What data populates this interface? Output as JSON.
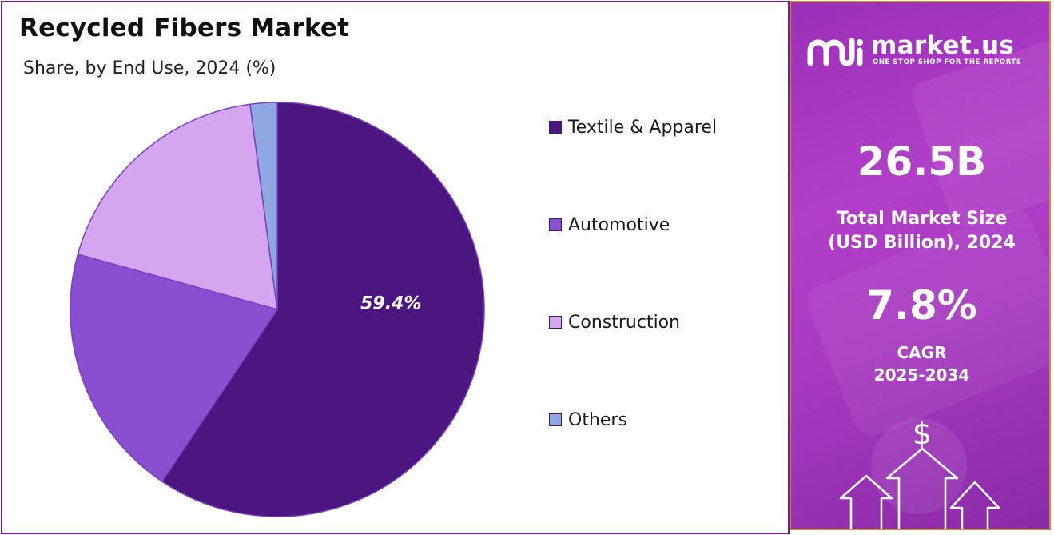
{
  "chart_data": {
    "type": "pie",
    "title": "Recycled Fibers Market",
    "subtitle": "Share, by End Use, 2024 (%)",
    "slices": [
      {
        "label": "Textile & Apparel",
        "value": 59.4,
        "color": "#4b1680",
        "data_label": "59.4%"
      },
      {
        "label": "Automotive",
        "value": 19.9,
        "color": "#8a4fd0"
      },
      {
        "label": "Construction",
        "value": 18.6,
        "color": "#d4a6ef"
      },
      {
        "label": "Others",
        "value": 2.1,
        "color": "#8fa8e4"
      }
    ],
    "legend_position": "right"
  },
  "sidebar": {
    "brand_name": "market.us",
    "brand_tagline": "ONE STOP SHOP FOR THE REPORTS",
    "market_size_value": "26.5B",
    "market_size_label_line1": "Total Market Size",
    "market_size_label_line2": "(USD Billion), 2024",
    "cagr_value": "7.8%",
    "cagr_label_line1": "CAGR",
    "cagr_label_line2": "2025-2034",
    "dollar_symbol": "$",
    "colors": {
      "panel_top": "#9b2fb8",
      "panel_bottom": "#8a2aa8",
      "border": "#d38a3c"
    }
  },
  "colors": {
    "frame_border": "#6a1fa0",
    "slice_outline": "#7b3fbf"
  }
}
